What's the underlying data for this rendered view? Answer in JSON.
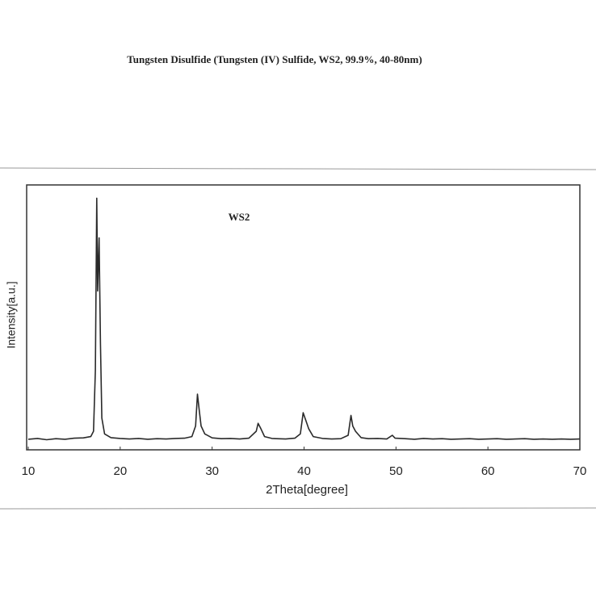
{
  "chart_data": {
    "type": "line",
    "title": "Tungsten Disulfide (Tungsten (IV) Sulfide, WS2, 99.9%, 40-80nm)",
    "annotation": "WS2",
    "x_label": "2Theta[degree]",
    "y_label": "Intensity[a.u.]",
    "color": "#2a2a2a",
    "xlim": [
      10,
      70
    ],
    "xticks": [
      10,
      20,
      30,
      40,
      50,
      60,
      70
    ],
    "ylim": [
      0,
      100
    ],
    "grid": false,
    "x": [
      10,
      11,
      12,
      13,
      14,
      15,
      16,
      16.8,
      17.1,
      17.3,
      17.45,
      17.55,
      17.7,
      17.85,
      18.0,
      18.3,
      19,
      20,
      21,
      22,
      23,
      24,
      25,
      26,
      27,
      27.8,
      28.2,
      28.4,
      28.6,
      28.8,
      29.2,
      30,
      31,
      32,
      33,
      34,
      34.8,
      35.0,
      35.3,
      35.7,
      36.5,
      37,
      38,
      39,
      39.6,
      39.9,
      40.2,
      40.5,
      41,
      42,
      43,
      44,
      44.8,
      45.1,
      45.3,
      45.6,
      46.2,
      47,
      48,
      49,
      49.6,
      49.9,
      51,
      52,
      53,
      54,
      55,
      56,
      57,
      58,
      59,
      60,
      61,
      62,
      63,
      64,
      65,
      66,
      67,
      68,
      69,
      70
    ],
    "y": [
      4,
      4.3,
      3.8,
      4.2,
      4,
      4.4,
      4.5,
      5,
      7,
      30,
      95,
      60,
      80,
      40,
      12,
      6,
      4.6,
      4.3,
      4.1,
      4.3,
      4,
      4.2,
      4.1,
      4.3,
      4.4,
      5,
      9,
      21,
      15,
      9,
      6,
      4.5,
      4.2,
      4.3,
      4.1,
      4.4,
      7,
      10,
      8,
      5,
      4.3,
      4.2,
      4.1,
      4.4,
      6,
      14,
      11,
      8,
      5,
      4.3,
      4.1,
      4.2,
      5.5,
      13,
      9,
      7,
      4.6,
      4.2,
      4.3,
      4.1,
      5.5,
      4.4,
      4.2,
      4,
      4.3,
      4.1,
      4.2,
      4,
      4.1,
      4.2,
      4,
      4.1,
      4.2,
      4,
      4.1,
      4.2,
      4,
      4.1,
      4,
      4.1,
      4,
      4.1
    ]
  }
}
